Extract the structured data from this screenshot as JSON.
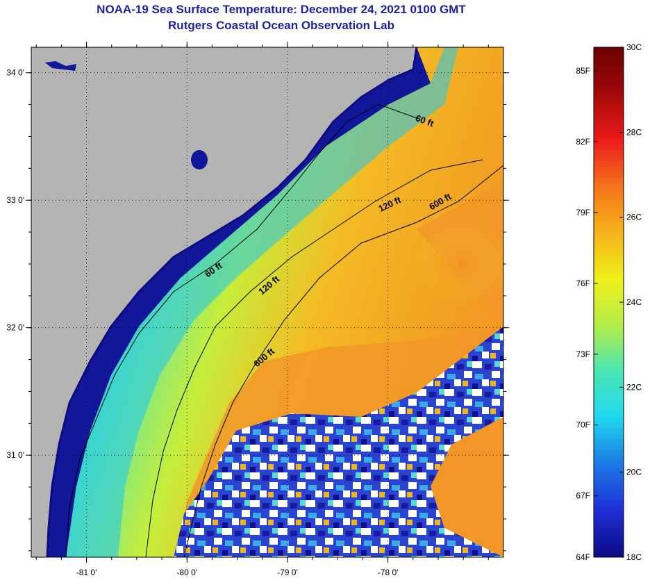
{
  "title": "NOAA-19 Sea Surface Temperature:  December 24, 2021 0100 GMT",
  "subtitle": "Rutgers Coastal Ocean Observation Lab",
  "map": {
    "lat_ticks": [
      {
        "value": 34.0,
        "label": "34 0'"
      },
      {
        "value": 33.0,
        "label": "33 0'"
      },
      {
        "value": 32.0,
        "label": "32 0'"
      },
      {
        "value": 31.0,
        "label": "31 0'"
      }
    ],
    "lon_ticks": [
      {
        "value": -81.0,
        "label": "-81 0'"
      },
      {
        "value": -80.0,
        "label": "-80 0'"
      },
      {
        "value": -79.0,
        "label": "-79 0'"
      },
      {
        "value": -78.0,
        "label": "-78 0'"
      }
    ],
    "lon_range": [
      -81.55,
      -76.85
    ],
    "lat_range": [
      30.2,
      34.2
    ],
    "isobaths": [
      {
        "label": "60 ft",
        "depth_ft": 60
      },
      {
        "label": "60 ft",
        "depth_ft": 60
      },
      {
        "label": "120 ft",
        "depth_ft": 120
      },
      {
        "label": "120 ft",
        "depth_ft": 120
      },
      {
        "label": "600 ft",
        "depth_ft": 600
      },
      {
        "label": "600 ft",
        "depth_ft": 600
      }
    ],
    "colors": {
      "land": "#b4b4b4",
      "cloud": "#ffffff",
      "coastline": "#000000"
    }
  },
  "colorbar": {
    "fahrenheit_labels": [
      {
        "value": 85,
        "label": "85F"
      },
      {
        "value": 82,
        "label": "82F"
      },
      {
        "value": 79,
        "label": "79F"
      },
      {
        "value": 76,
        "label": "76F"
      },
      {
        "value": 73,
        "label": "73F"
      },
      {
        "value": 70,
        "label": "70F"
      },
      {
        "value": 67,
        "label": "67F"
      },
      {
        "value": 64,
        "label": "64F"
      }
    ],
    "celsius_labels": [
      {
        "value": 30,
        "label": "30C"
      },
      {
        "value": 28,
        "label": "28C"
      },
      {
        "value": 26,
        "label": "26C"
      },
      {
        "value": 24,
        "label": "24C"
      },
      {
        "value": 22,
        "label": "22C"
      },
      {
        "value": 20,
        "label": "20C"
      },
      {
        "value": 18,
        "label": "18C"
      }
    ],
    "range_c": [
      18,
      30
    ],
    "palette": [
      "#0a0a85",
      "#1f2ed6",
      "#1b78e6",
      "#1ed6f0",
      "#49e6b4",
      "#b4ec47",
      "#f0f01a",
      "#f7b21a",
      "#f5731a",
      "#ec1a1a",
      "#a30808",
      "#6b0000"
    ]
  }
}
